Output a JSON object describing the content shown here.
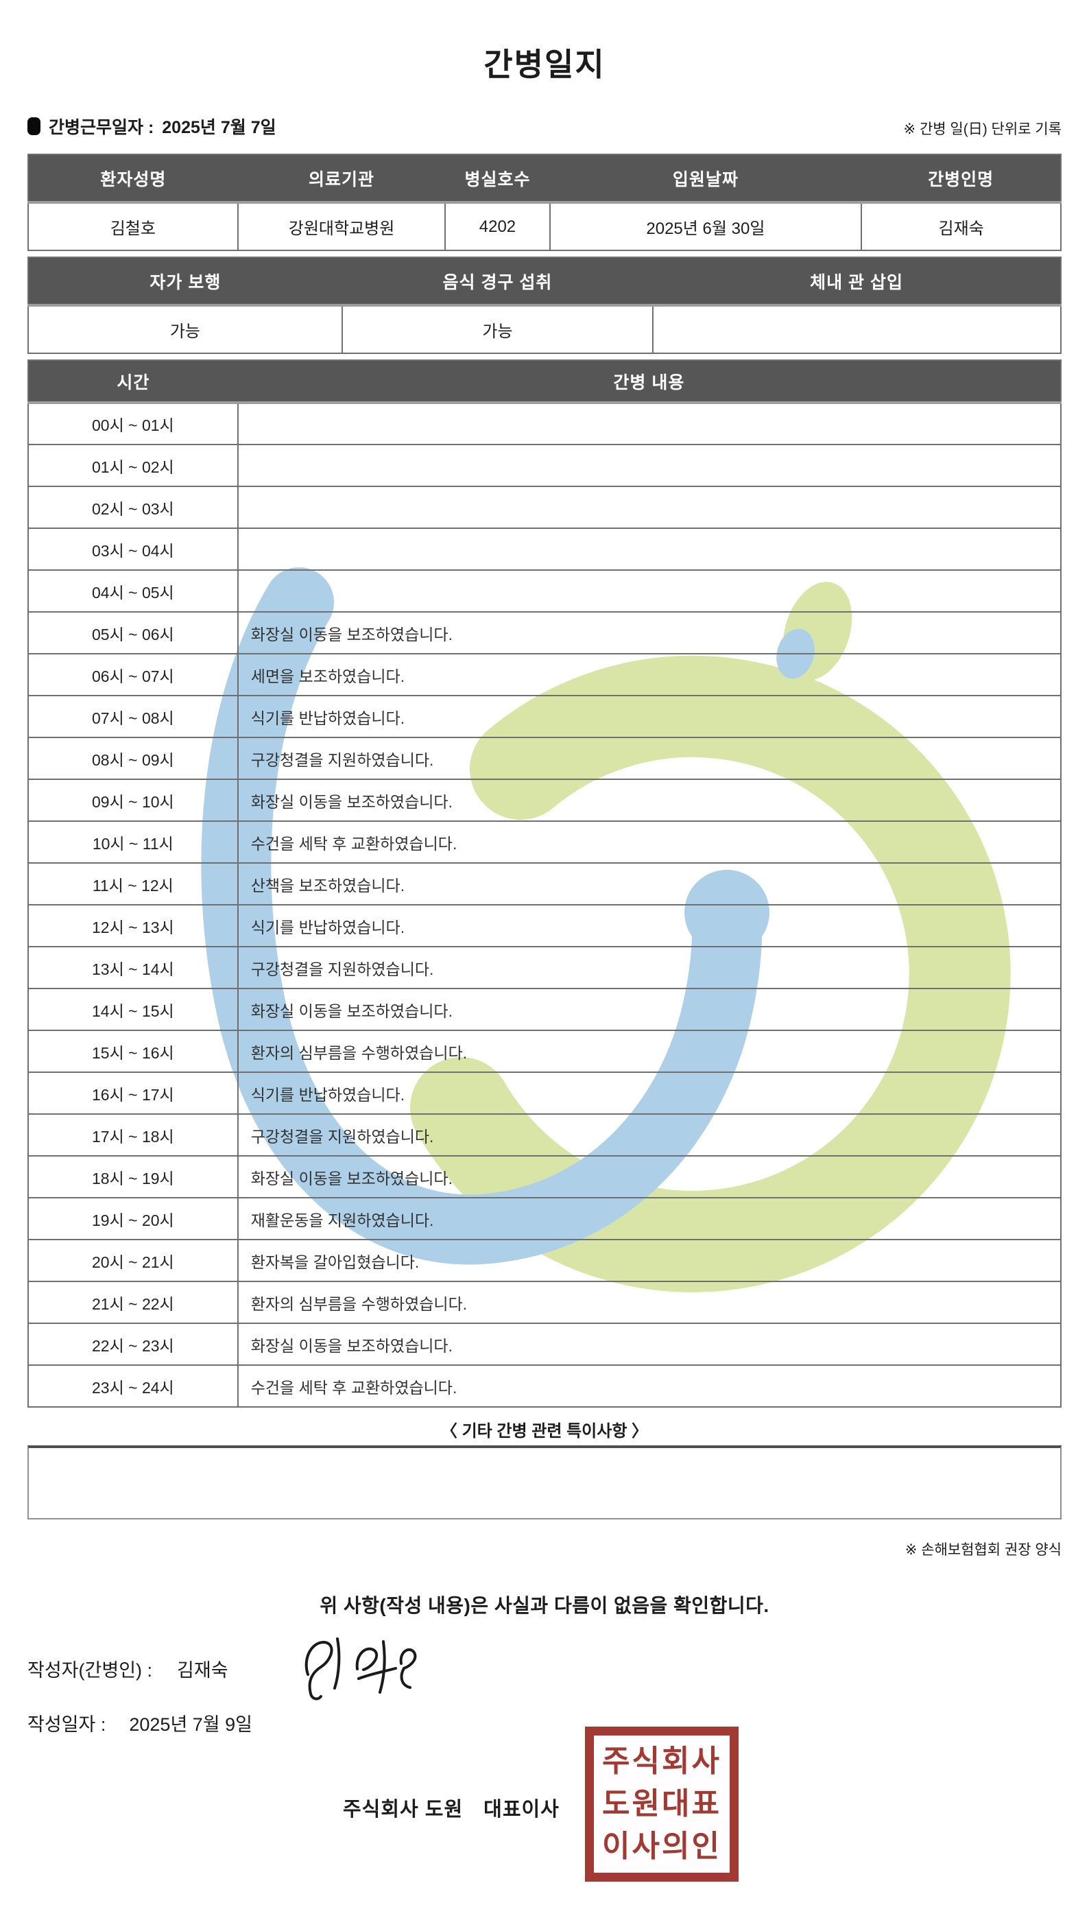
{
  "title": "간병일지",
  "meta": {
    "work_date_label": "간병근무일자  :",
    "work_date_value": "2025년 7월 7일",
    "unit_note": "※ 간병 일(日) 단위로 기록"
  },
  "patient_table": {
    "headers": [
      "환자성명",
      "의료기관",
      "병실호수",
      "입원날짜",
      "간병인명"
    ],
    "values": [
      "김철호",
      "강원대학교병원",
      "4202",
      "2025년 6월 30일",
      "김재숙"
    ]
  },
  "status_table": {
    "headers": [
      "자가 보행",
      "음식 경구 섭취",
      "체내 관 삽입"
    ],
    "values": [
      "가능",
      "가능",
      ""
    ]
  },
  "care_log": {
    "time_header": "시간",
    "content_header": "간병 내용",
    "rows": [
      {
        "time": "00시 ~ 01시",
        "content": ""
      },
      {
        "time": "01시 ~ 02시",
        "content": ""
      },
      {
        "time": "02시 ~ 03시",
        "content": ""
      },
      {
        "time": "03시 ~ 04시",
        "content": ""
      },
      {
        "time": "04시 ~ 05시",
        "content": ""
      },
      {
        "time": "05시 ~ 06시",
        "content": "화장실 이동을 보조하였습니다."
      },
      {
        "time": "06시 ~ 07시",
        "content": "세면을 보조하였습니다."
      },
      {
        "time": "07시 ~ 08시",
        "content": "식기를 반납하였습니다."
      },
      {
        "time": "08시 ~ 09시",
        "content": "구강청결을 지원하였습니다."
      },
      {
        "time": "09시 ~ 10시",
        "content": "화장실 이동을 보조하였습니다."
      },
      {
        "time": "10시 ~ 11시",
        "content": "수건을 세탁 후 교환하였습니다."
      },
      {
        "time": "11시 ~ 12시",
        "content": "산책을 보조하였습니다."
      },
      {
        "time": "12시 ~ 13시",
        "content": "식기를 반납하였습니다."
      },
      {
        "time": "13시 ~ 14시",
        "content": "구강청결을 지원하였습니다."
      },
      {
        "time": "14시 ~ 15시",
        "content": "화장실 이동을 보조하였습니다."
      },
      {
        "time": "15시 ~ 16시",
        "content": "환자의 심부름을 수행하였습니다."
      },
      {
        "time": "16시 ~ 17시",
        "content": "식기를 반납하였습니다."
      },
      {
        "time": "17시 ~ 18시",
        "content": "구강청결을 지원하였습니다."
      },
      {
        "time": "18시 ~ 19시",
        "content": "화장실 이동을 보조하였습니다."
      },
      {
        "time": "19시 ~ 20시",
        "content": "재활운동을 지원하였습니다."
      },
      {
        "time": "20시 ~ 21시",
        "content": "환자복을 갈아입혔습니다."
      },
      {
        "time": "21시 ~ 22시",
        "content": "환자의 심부름을 수행하였습니다."
      },
      {
        "time": "22시 ~ 23시",
        "content": "화장실 이동을 보조하였습니다."
      },
      {
        "time": "23시 ~ 24시",
        "content": "수건을 세탁 후 교환하였습니다."
      }
    ]
  },
  "notes": {
    "title": "〈 기타 간병 관련 특이사항 〉",
    "content": "",
    "form_note": "※ 손해보험협회 권장 양식"
  },
  "confirmation": {
    "statement": "위 사항(작성 내용)은 사실과 다름이 없음을 확인합니다.",
    "writer_label": "작성자(간병인) :",
    "writer_name": "김재숙",
    "date_label": "작성일자 :",
    "date_value": "2025년 7월 9일"
  },
  "footer": {
    "company": "주식회사 도원",
    "ceo_label": "대표이사",
    "stamp_lines": [
      "주식회사",
      "도원대표",
      "이사의인"
    ]
  },
  "colors": {
    "header_bg": "#565656",
    "table_border": "#707070",
    "stamp_red": "#a23a33",
    "watermark_green": "#d9e5a6",
    "watermark_blue": "#aecfe8"
  }
}
